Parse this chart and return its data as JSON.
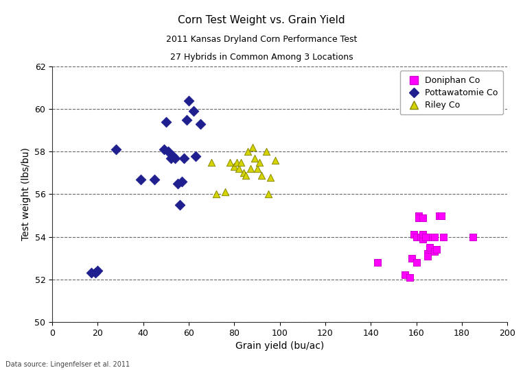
{
  "title": "Corn Test Weight vs. Grain Yield",
  "subtitle1": "2011 Kansas Dryland Corn Performance Test",
  "subtitle2": "27 Hybrids in Common Among 3 Locations",
  "xlabel": "Grain yield (bu/ac)",
  "ylabel": "Test weight (lbs/bu)",
  "footnote": "Data source: Lingenfelser et al. 2011",
  "xlim": [
    0,
    200
  ],
  "ylim": [
    50,
    62
  ],
  "xticks": [
    0,
    20,
    40,
    60,
    80,
    100,
    120,
    140,
    160,
    180,
    200
  ],
  "yticks": [
    50,
    52,
    54,
    56,
    58,
    60,
    62
  ],
  "background_color": "#ffffff",
  "doniphan": {
    "label": "Doniphan Co",
    "color": "#ff00ff",
    "edgecolor": "#cc00cc",
    "marker": "s",
    "x": [
      143,
      155,
      157,
      158,
      159,
      160,
      160,
      161,
      161,
      162,
      163,
      163,
      163,
      164,
      165,
      165,
      166,
      167,
      168,
      168,
      169,
      170,
      171,
      172,
      185
    ],
    "y": [
      52.8,
      52.2,
      52.1,
      53.0,
      54.1,
      54.0,
      52.8,
      55.0,
      54.9,
      54.0,
      53.9,
      54.1,
      54.9,
      54.0,
      53.2,
      53.1,
      53.5,
      54.0,
      53.3,
      54.0,
      53.4,
      55.0,
      55.0,
      54.0,
      54.0
    ]
  },
  "pottawatomie": {
    "label": "Pottawatomie Co",
    "color": "#1f1f8f",
    "edgecolor": "#1f1f8f",
    "marker": "D",
    "x": [
      17,
      19,
      20,
      28,
      39,
      45,
      49,
      50,
      51,
      52,
      53,
      54,
      55,
      56,
      57,
      58,
      59,
      60,
      62,
      63,
      65
    ],
    "y": [
      52.3,
      52.3,
      52.4,
      58.1,
      56.7,
      56.7,
      58.1,
      59.4,
      58.0,
      57.7,
      57.8,
      57.7,
      56.5,
      55.5,
      56.6,
      57.7,
      59.5,
      60.4,
      59.9,
      57.8,
      59.3
    ]
  },
  "riley": {
    "label": "Riley Co",
    "color": "#d4d400",
    "edgecolor": "#888800",
    "marker": "^",
    "x": [
      70,
      72,
      76,
      78,
      80,
      81,
      82,
      83,
      84,
      85,
      86,
      87,
      88,
      89,
      90,
      91,
      92,
      94,
      95,
      96,
      98
    ],
    "y": [
      57.5,
      56.0,
      56.1,
      57.5,
      57.3,
      57.5,
      57.2,
      57.5,
      57.0,
      56.9,
      58.0,
      57.2,
      58.2,
      57.7,
      57.2,
      57.5,
      56.9,
      58.0,
      56.0,
      56.8,
      57.6
    ]
  }
}
